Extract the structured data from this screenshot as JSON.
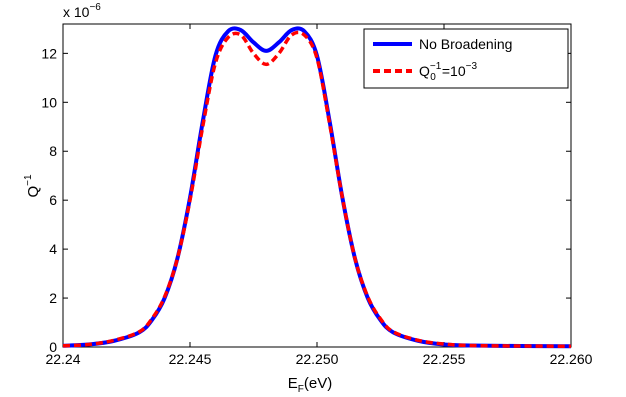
{
  "chart_data": {
    "type": "line",
    "xlabel_main": "E",
    "xlabel_sub": "F",
    "xlabel_unit": "(eV)",
    "ylabel_main": "Q",
    "ylabel_sup": "−1",
    "y_multiplier_base": "x 10",
    "y_multiplier_exp": "−6",
    "xlim": [
      22.24,
      22.26
    ],
    "ylim": [
      0,
      13.2
    ],
    "x_ticks": [
      22.24,
      22.245,
      22.25,
      22.255,
      22.26
    ],
    "x_tick_labels": [
      "22.24",
      "22.245",
      "22.250",
      "22.255",
      "22.260"
    ],
    "y_ticks": [
      0,
      2,
      4,
      6,
      8,
      10,
      12
    ],
    "y_tick_labels": [
      "0",
      "2",
      "4",
      "6",
      "8",
      "10",
      "12"
    ],
    "grid": false,
    "legend_position": "top-right",
    "series": [
      {
        "name": "No Broadening",
        "color": "#0000ff",
        "style": "solid",
        "x": [
          22.24,
          22.241,
          22.242,
          22.243,
          22.2435,
          22.244,
          22.2445,
          22.245,
          22.2455,
          22.246,
          22.2465,
          22.247,
          22.2475,
          22.248,
          22.2485,
          22.249,
          22.2495,
          22.25,
          22.2505,
          22.251,
          22.2515,
          22.252,
          22.2525,
          22.253,
          22.254,
          22.255,
          22.256,
          22.258,
          22.26
        ],
        "y": [
          0.05,
          0.1,
          0.25,
          0.6,
          1.1,
          2.0,
          3.6,
          6.1,
          9.2,
          11.9,
          12.9,
          12.95,
          12.45,
          12.1,
          12.45,
          12.95,
          12.9,
          11.9,
          9.2,
          6.1,
          3.6,
          2.0,
          1.1,
          0.6,
          0.25,
          0.1,
          0.06,
          0.04,
          0.03
        ]
      },
      {
        "name": "Q0^-1 = 10^-3",
        "color": "#ff0000",
        "style": "dashed",
        "x": [
          22.24,
          22.241,
          22.242,
          22.243,
          22.2435,
          22.244,
          22.2445,
          22.245,
          22.2455,
          22.246,
          22.2465,
          22.247,
          22.2475,
          22.248,
          22.2485,
          22.249,
          22.2495,
          22.25,
          22.2505,
          22.251,
          22.2515,
          22.252,
          22.2525,
          22.253,
          22.254,
          22.255,
          22.256,
          22.258,
          22.26
        ],
        "y": [
          0.05,
          0.1,
          0.27,
          0.62,
          1.15,
          2.05,
          3.6,
          6.0,
          9.0,
          11.6,
          12.65,
          12.75,
          12.0,
          11.55,
          12.0,
          12.75,
          12.75,
          11.8,
          9.1,
          6.1,
          3.6,
          2.05,
          1.15,
          0.62,
          0.27,
          0.12,
          0.06,
          0.04,
          0.03
        ]
      }
    ],
    "legend": {
      "entry1": "No Broadening",
      "entry2_main": "Q",
      "entry2_sub": "0",
      "entry2_sup": "−1",
      "entry2_mid": "=10",
      "entry2_exp": "−3"
    }
  }
}
